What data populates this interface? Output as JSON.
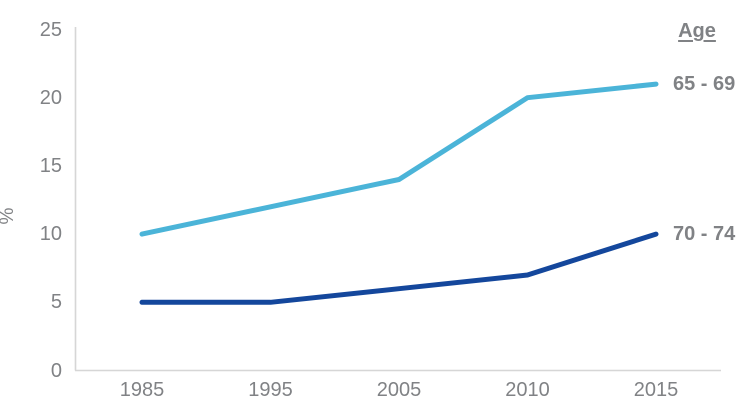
{
  "chart_data": {
    "type": "line",
    "title": "",
    "ylabel": "%",
    "legend_title": "Age",
    "categories": [
      "1985",
      "1995",
      "2005",
      "2010",
      "2015"
    ],
    "series": [
      {
        "name": "65 - 69",
        "values": [
          10,
          12,
          14,
          20,
          21
        ],
        "color": "#4BB4D8"
      },
      {
        "name": "70 - 74",
        "values": [
          5,
          5,
          6,
          7,
          10
        ],
        "color": "#14479C"
      }
    ],
    "yticks": [
      0,
      5,
      10,
      15,
      20,
      25
    ],
    "ylim": [
      0,
      25
    ],
    "grid": false,
    "legend_position": "end-of-line-right"
  },
  "colors": {
    "background": "#FFFFFF",
    "text_gray": "#808285",
    "axis_line": "#D6D6D6"
  }
}
